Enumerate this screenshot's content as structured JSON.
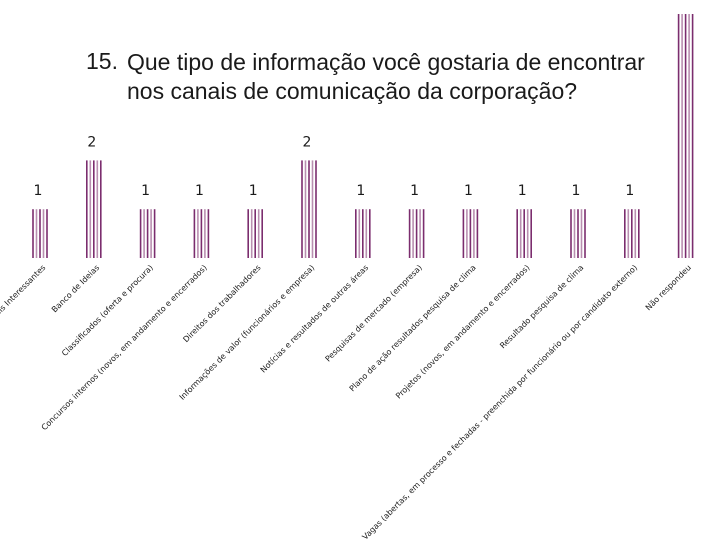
{
  "title": {
    "number": "15.",
    "text": "Que tipo de informação você gostaria de encontrar nos canais de comunicação da corporação?"
  },
  "colors": {
    "bar": "#7b2d6e",
    "bar_light": "#b98fb0"
  },
  "chart_data": {
    "type": "bar",
    "title": "15. Que tipo de informação você gostaria de encontrar nos canais de comunicação da corporação?",
    "categories": [
      "Mais Interessantes",
      "Banco de Ideias",
      "Classificados (oferta e procura)",
      "Concursos internos (novos, em andamento e encerrados)",
      "Direitos dos trabalhadores",
      "Informações de valor (funcionários e empresa)",
      "Notícias e resultados de outras áreas",
      "Pesquisas de mercado (empresa)",
      "Plano de ação resultados pesquisa de clima",
      "Projetos (novos, em andamento e encerrados)",
      "Resultado pesquisa de clima",
      "Vagas (abertas, em processo e fechadas - preenchida por funcionário ou por candidato externo)",
      "Não respondeu"
    ],
    "values": [
      1,
      2,
      1,
      1,
      1,
      2,
      1,
      1,
      1,
      1,
      1,
      1,
      5
    ],
    "data_labels": [
      "1",
      "2",
      "1",
      "1",
      "1",
      "2",
      "1",
      "1",
      "1",
      "1",
      "1",
      "1",
      ""
    ],
    "ylim": [
      0,
      5
    ],
    "grid": false,
    "legend": "none"
  }
}
